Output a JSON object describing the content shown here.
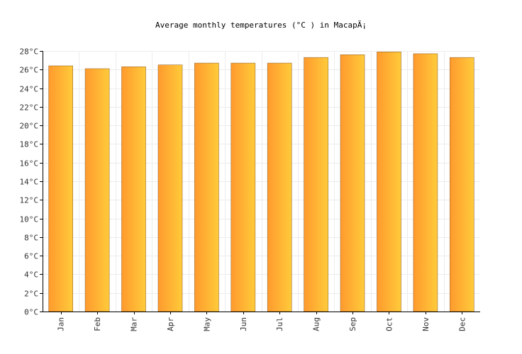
{
  "chart_data": {
    "type": "bar",
    "title": "Average monthly temperatures (°C ) in MacapÃ¡",
    "xlabel": "",
    "ylabel": "",
    "categories": [
      "Jan",
      "Feb",
      "Mar",
      "Apr",
      "May",
      "Jun",
      "Jul",
      "Aug",
      "Sep",
      "Oct",
      "Nov",
      "Dec"
    ],
    "values": [
      26.4,
      26.1,
      26.3,
      26.5,
      26.7,
      26.7,
      26.7,
      27.3,
      27.6,
      27.9,
      27.7,
      27.3
    ],
    "ylim": [
      0,
      28
    ],
    "yticks": [
      "0°C",
      "2°C",
      "4°C",
      "6°C",
      "8°C",
      "10°C",
      "12°C",
      "14°C",
      "16°C",
      "18°C",
      "20°C",
      "22°C",
      "24°C",
      "26°C",
      "28°C"
    ],
    "grid": true,
    "colors": {
      "bar_start": "#ff9a2e",
      "bar_end": "#ffcb3a",
      "bar_border": "#9a6a30",
      "grid": "#ececec",
      "axis": "#000000"
    }
  }
}
